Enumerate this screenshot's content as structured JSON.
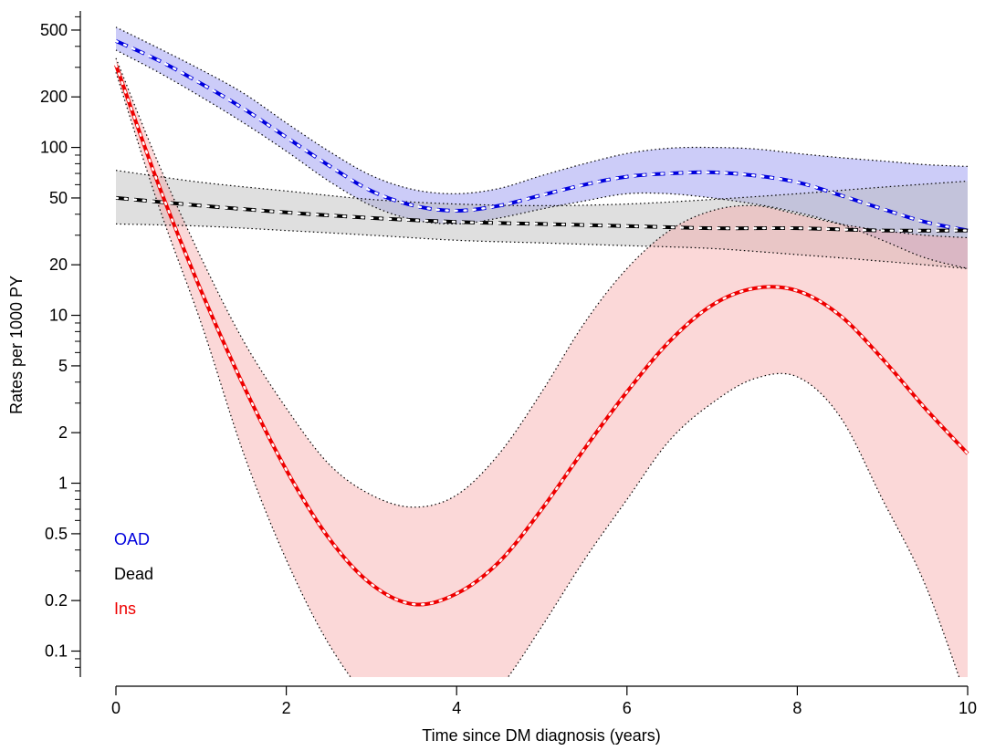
{
  "chart_data": {
    "type": "line",
    "xlabel": "Time since DM diagnosis (years)",
    "ylabel": "Rates per 1000 PY",
    "xlim": [
      0,
      10
    ],
    "ylim": [
      0.07,
      650
    ],
    "yscale": "log",
    "x_ticks": [
      0,
      2,
      4,
      6,
      8,
      10
    ],
    "y_ticks_labeled": [
      0.1,
      0.2,
      0.5,
      1,
      2,
      5,
      10,
      20,
      50,
      100,
      200,
      500
    ],
    "y_ticks_minor": [
      0.3,
      0.4,
      0.6,
      0.7,
      0.8,
      0.9,
      3,
      4,
      6,
      7,
      8,
      9,
      30,
      40,
      60,
      70,
      80,
      90,
      300,
      400
    ],
    "grid": false,
    "legend_position": "bottom-left",
    "series": [
      {
        "name": "OAD",
        "color": "#0000dd",
        "style": "dashed",
        "band_color": "#8f8ff0",
        "x": [
          0,
          0.5,
          1,
          1.5,
          2,
          2.5,
          3,
          3.5,
          4,
          4.5,
          5,
          5.5,
          6,
          6.5,
          7,
          7.5,
          8,
          8.5,
          9,
          9.5,
          10
        ],
        "y": [
          430,
          330,
          240,
          170,
          115,
          78,
          55,
          45,
          42,
          45,
          52,
          60,
          67,
          70,
          71,
          68,
          62,
          52,
          43,
          36,
          32
        ],
        "lower": [
          380,
          280,
          200,
          140,
          95,
          63,
          45,
          37,
          35,
          38,
          43,
          48,
          53,
          53,
          50,
          46,
          41,
          35,
          28,
          22,
          19
        ],
        "upper": [
          520,
          390,
          290,
          210,
          140,
          95,
          68,
          56,
          53,
          57,
          68,
          80,
          92,
          99,
          100,
          98,
          92,
          87,
          83,
          79,
          77
        ]
      },
      {
        "name": "Dead",
        "color": "#000000",
        "style": "dashed",
        "band_color": "#b9b9b9",
        "x": [
          0,
          1,
          2,
          3,
          4,
          5,
          6,
          7,
          8,
          9,
          10
        ],
        "y": [
          50,
          45,
          41,
          38,
          36,
          35,
          34,
          33,
          33,
          32,
          32
        ],
        "lower": [
          35,
          34,
          32,
          30,
          28,
          27,
          26,
          25,
          23,
          21,
          19
        ],
        "upper": [
          73,
          62,
          55,
          49,
          46,
          45,
          46,
          49,
          53,
          58,
          63
        ]
      },
      {
        "name": "Ins",
        "color": "#ee0000",
        "style": "solid",
        "band_color": "#f6a8a8",
        "x": [
          0,
          0.5,
          1,
          1.5,
          2,
          2.5,
          3,
          3.5,
          4,
          4.5,
          5,
          5.5,
          6,
          6.5,
          7,
          7.5,
          8,
          8.5,
          9,
          9.5,
          10
        ],
        "y": [
          310,
          60,
          14,
          3.8,
          1.2,
          0.47,
          0.25,
          0.19,
          0.22,
          0.34,
          0.7,
          1.6,
          3.5,
          7,
          11.5,
          14.5,
          14,
          10,
          5.5,
          2.8,
          1.5
        ],
        "lower": [
          280,
          45,
          9,
          1.5,
          0.35,
          0.11,
          0.05,
          0.03,
          0.035,
          0.06,
          0.14,
          0.35,
          0.8,
          1.8,
          3,
          4.2,
          4.3,
          2.5,
          0.8,
          0.25,
          0.05
        ],
        "upper": [
          340,
          80,
          22,
          7,
          2.8,
          1.3,
          0.85,
          0.72,
          0.85,
          1.5,
          3.5,
          9,
          19,
          32,
          42,
          45,
          40,
          35,
          32,
          30,
          29
        ]
      }
    ]
  }
}
